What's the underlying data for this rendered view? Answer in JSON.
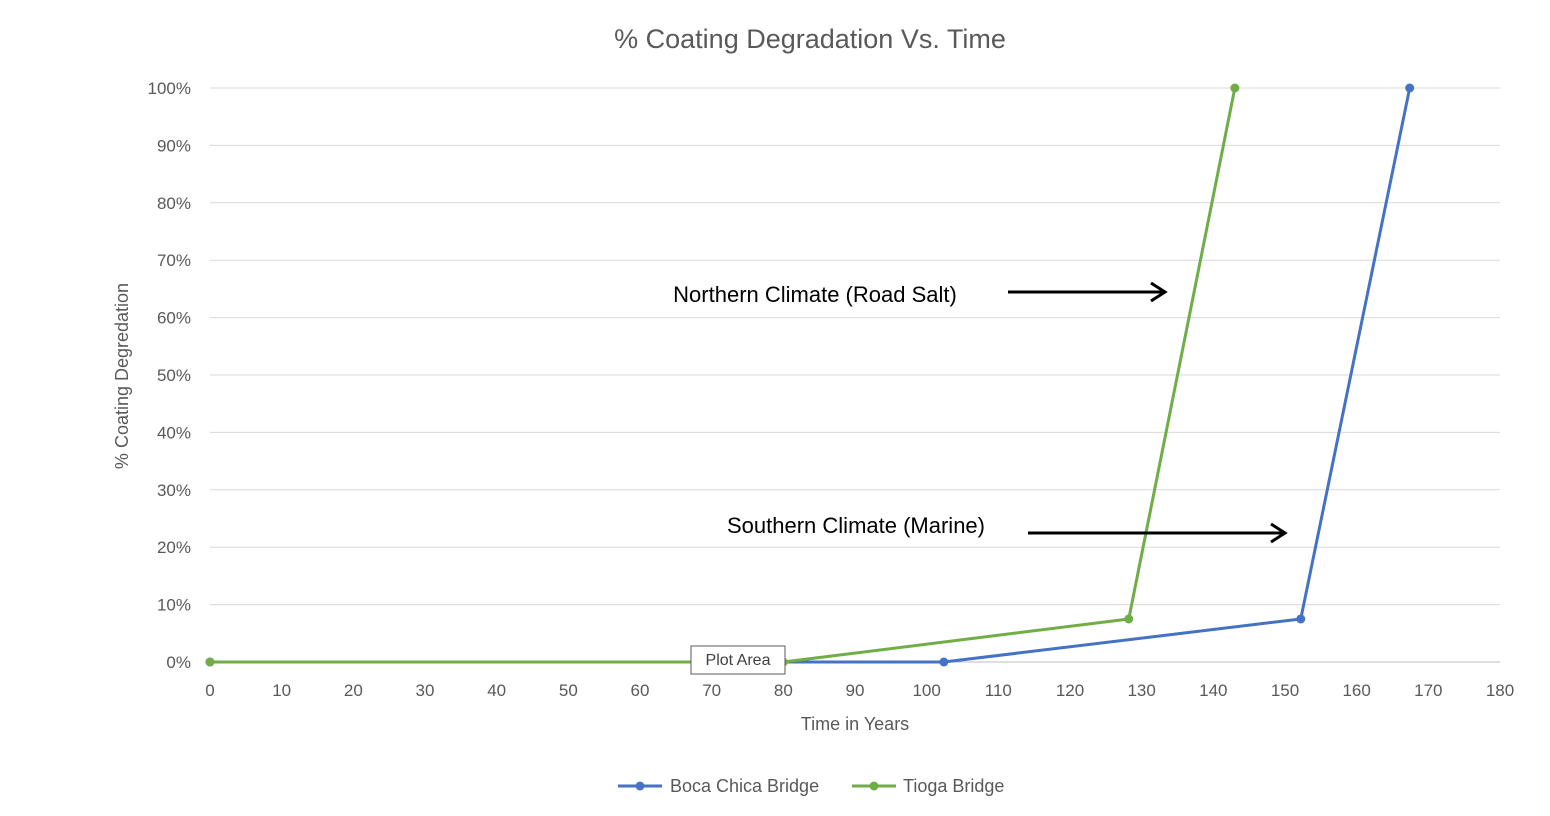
{
  "chart_data": {
    "type": "line",
    "title": "% Coating Degradation Vs. Time",
    "xlabel": "Time in Years",
    "ylabel": "% Coating Degredation",
    "xlim": [
      0,
      180
    ],
    "ylim": [
      0,
      100
    ],
    "x_ticks": [
      "0",
      "10",
      "20",
      "30",
      "40",
      "50",
      "60",
      "70",
      "80",
      "90",
      "100",
      "110",
      "120",
      "130",
      "140",
      "150",
      "160",
      "170",
      "180"
    ],
    "y_ticks": [
      "0%",
      "10%",
      "20%",
      "30%",
      "40%",
      "50%",
      "60%",
      "70%",
      "80%",
      "90%",
      "100%"
    ],
    "grid": true,
    "legend_position": "bottom",
    "series": [
      {
        "name": "Boca Chica Bridge",
        "color": "#4472C4",
        "points": [
          [
            0,
            0
          ],
          [
            102.4,
            0
          ],
          [
            152.2,
            7.5
          ],
          [
            167.4,
            100
          ]
        ]
      },
      {
        "name": "Tioga Bridge",
        "color": "#70AD47",
        "points": [
          [
            0,
            0
          ],
          [
            80,
            0
          ],
          [
            128.2,
            7.5
          ],
          [
            143,
            100
          ]
        ]
      }
    ],
    "annotations": [
      {
        "text": "Northern Climate (Road Salt)"
      },
      {
        "text": "Southern Climate (Marine)"
      }
    ],
    "tooltip": "Plot Area"
  }
}
